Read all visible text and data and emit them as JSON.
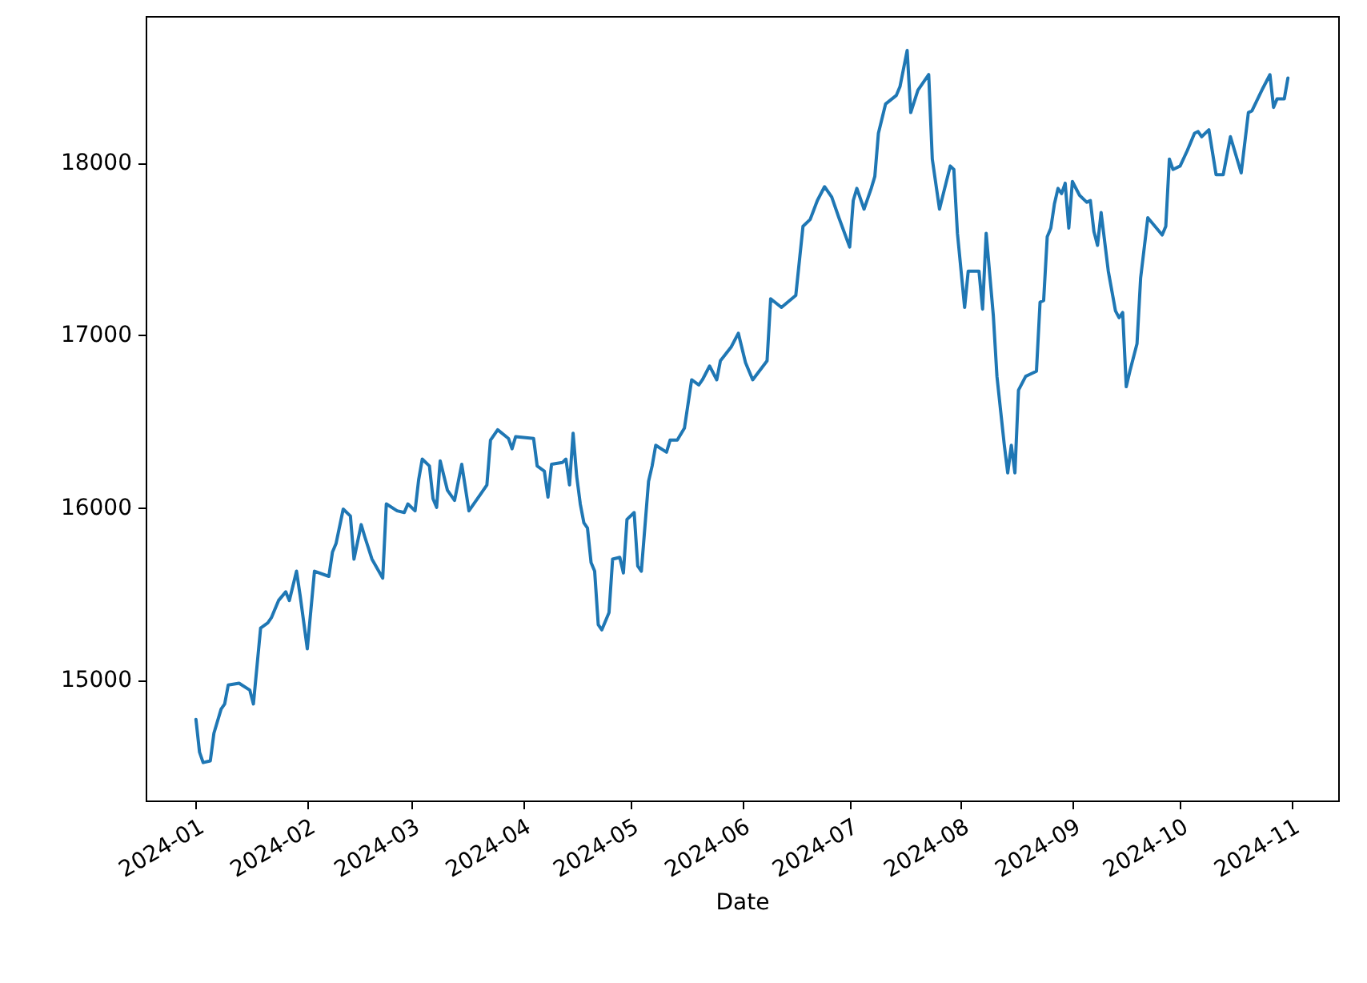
{
  "chart_data": {
    "type": "line",
    "xlabel": "Date",
    "x": [
      "2024-01-01",
      "2024-01-02",
      "2024-01-03",
      "2024-01-05",
      "2024-01-06",
      "2024-01-08",
      "2024-01-09",
      "2024-01-10",
      "2024-01-13",
      "2024-01-16",
      "2024-01-17",
      "2024-01-19",
      "2024-01-21",
      "2024-01-22",
      "2024-01-24",
      "2024-01-26",
      "2024-01-27",
      "2024-01-29",
      "2024-01-30",
      "2024-02-01",
      "2024-02-03",
      "2024-02-07",
      "2024-02-08",
      "2024-02-09",
      "2024-02-11",
      "2024-02-13",
      "2024-02-14",
      "2024-02-16",
      "2024-02-17",
      "2024-02-19",
      "2024-02-22",
      "2024-02-23",
      "2024-02-26",
      "2024-02-28",
      "2024-02-29",
      "2024-03-02",
      "2024-03-03",
      "2024-03-04",
      "2024-03-06",
      "2024-03-07",
      "2024-03-08",
      "2024-03-09",
      "2024-03-11",
      "2024-03-13",
      "2024-03-15",
      "2024-03-17",
      "2024-03-20",
      "2024-03-22",
      "2024-03-23",
      "2024-03-25",
      "2024-03-28",
      "2024-03-29",
      "2024-03-30",
      "2024-04-04",
      "2024-04-05",
      "2024-04-07",
      "2024-04-08",
      "2024-04-09",
      "2024-04-12",
      "2024-04-13",
      "2024-04-14",
      "2024-04-15",
      "2024-04-16",
      "2024-04-17",
      "2024-04-18",
      "2024-04-19",
      "2024-04-20",
      "2024-04-21",
      "2024-04-22",
      "2024-04-23",
      "2024-04-25",
      "2024-04-26",
      "2024-04-28",
      "2024-04-29",
      "2024-04-30",
      "2024-05-02",
      "2024-05-03",
      "2024-05-04",
      "2024-05-06",
      "2024-05-07",
      "2024-05-08",
      "2024-05-11",
      "2024-05-12",
      "2024-05-14",
      "2024-05-16",
      "2024-05-18",
      "2024-05-20",
      "2024-05-21",
      "2024-05-23",
      "2024-05-25",
      "2024-05-26",
      "2024-05-29",
      "2024-05-31",
      "2024-06-02",
      "2024-06-04",
      "2024-06-08",
      "2024-06-09",
      "2024-06-12",
      "2024-06-16",
      "2024-06-18",
      "2024-06-20",
      "2024-06-22",
      "2024-06-24",
      "2024-06-26",
      "2024-06-28",
      "2024-07-01",
      "2024-07-02",
      "2024-07-03",
      "2024-07-05",
      "2024-07-07",
      "2024-07-08",
      "2024-07-09",
      "2024-07-11",
      "2024-07-14",
      "2024-07-15",
      "2024-07-17",
      "2024-07-18",
      "2024-07-20",
      "2024-07-23",
      "2024-07-24",
      "2024-07-26",
      "2024-07-29",
      "2024-07-30",
      "2024-07-31",
      "2024-08-02",
      "2024-08-03",
      "2024-08-06",
      "2024-08-07",
      "2024-08-08",
      "2024-08-10",
      "2024-08-11",
      "2024-08-13",
      "2024-08-14",
      "2024-08-15",
      "2024-08-16",
      "2024-08-17",
      "2024-08-19",
      "2024-08-20",
      "2024-08-22",
      "2024-08-23",
      "2024-08-24",
      "2024-08-25",
      "2024-08-26",
      "2024-08-27",
      "2024-08-28",
      "2024-08-29",
      "2024-08-30",
      "2024-08-31",
      "2024-09-01",
      "2024-09-03",
      "2024-09-05",
      "2024-09-06",
      "2024-09-07",
      "2024-09-08",
      "2024-09-09",
      "2024-09-11",
      "2024-09-13",
      "2024-09-14",
      "2024-09-15",
      "2024-09-16",
      "2024-09-17",
      "2024-09-19",
      "2024-09-20",
      "2024-09-22",
      "2024-09-24",
      "2024-09-26",
      "2024-09-27",
      "2024-09-28",
      "2024-09-29",
      "2024-10-01",
      "2024-10-03",
      "2024-10-05",
      "2024-10-06",
      "2024-10-07",
      "2024-10-09",
      "2024-10-11",
      "2024-10-13",
      "2024-10-15",
      "2024-10-18",
      "2024-10-20",
      "2024-10-21",
      "2024-10-24",
      "2024-10-26",
      "2024-10-27",
      "2024-10-28",
      "2024-10-30",
      "2024-10-31"
    ],
    "series": [
      {
        "color": "#1f77b4",
        "values": [
          14770,
          14580,
          14520,
          14530,
          14690,
          14830,
          14860,
          14970,
          14980,
          14940,
          14860,
          15300,
          15330,
          15360,
          15460,
          15510,
          15460,
          15630,
          15490,
          15180,
          15630,
          15600,
          15740,
          15790,
          15990,
          15950,
          15700,
          15900,
          15830,
          15700,
          15590,
          16020,
          15980,
          15970,
          16020,
          15980,
          16160,
          16280,
          16240,
          16050,
          16000,
          16270,
          16100,
          16040,
          16250,
          15980,
          16070,
          16130,
          16390,
          16450,
          16400,
          16340,
          16410,
          16400,
          16240,
          16210,
          16060,
          16250,
          16260,
          16280,
          16130,
          16430,
          16180,
          16020,
          15910,
          15880,
          15680,
          15630,
          15320,
          15290,
          15390,
          15700,
          15710,
          15620,
          15930,
          15970,
          15660,
          15630,
          16150,
          16240,
          16360,
          16320,
          16390,
          16390,
          16460,
          16740,
          16710,
          16740,
          16820,
          16740,
          16850,
          16930,
          17010,
          16840,
          16740,
          16850,
          17210,
          17160,
          17230,
          17630,
          17670,
          17780,
          17860,
          17800,
          17680,
          17510,
          17780,
          17850,
          17730,
          17850,
          17920,
          18170,
          18340,
          18390,
          18440,
          18650,
          18290,
          18420,
          18510,
          18020,
          17730,
          17980,
          17960,
          17590,
          17160,
          17370,
          17370,
          17150,
          17590,
          17110,
          16760,
          16370,
          16200,
          16360,
          16200,
          16680,
          16760,
          16770,
          16790,
          17190,
          17200,
          17570,
          17620,
          17760,
          17850,
          17820,
          17880,
          17620,
          17890,
          17810,
          17770,
          17780,
          17600,
          17520,
          17710,
          17370,
          17140,
          17100,
          17130,
          16700,
          16790,
          16950,
          17330,
          17680,
          17630,
          17580,
          17630,
          18020,
          17960,
          17980,
          18070,
          18170,
          18180,
          18150,
          18190,
          17930,
          17930,
          18150,
          17940,
          18290,
          18300,
          18430,
          18510,
          18320,
          18370,
          18370,
          18490
        ]
      }
    ],
    "xlim": [
      "2023-12-18",
      "2024-11-14"
    ],
    "xticks": [
      "2024-01",
      "2024-02",
      "2024-03",
      "2024-04",
      "2024-05",
      "2024-06",
      "2024-07",
      "2024-08",
      "2024-09",
      "2024-10",
      "2024-11"
    ],
    "ylim": [
      14300,
      18850
    ],
    "yticks": [
      15000,
      16000,
      17000,
      18000
    ],
    "marker": "none"
  }
}
